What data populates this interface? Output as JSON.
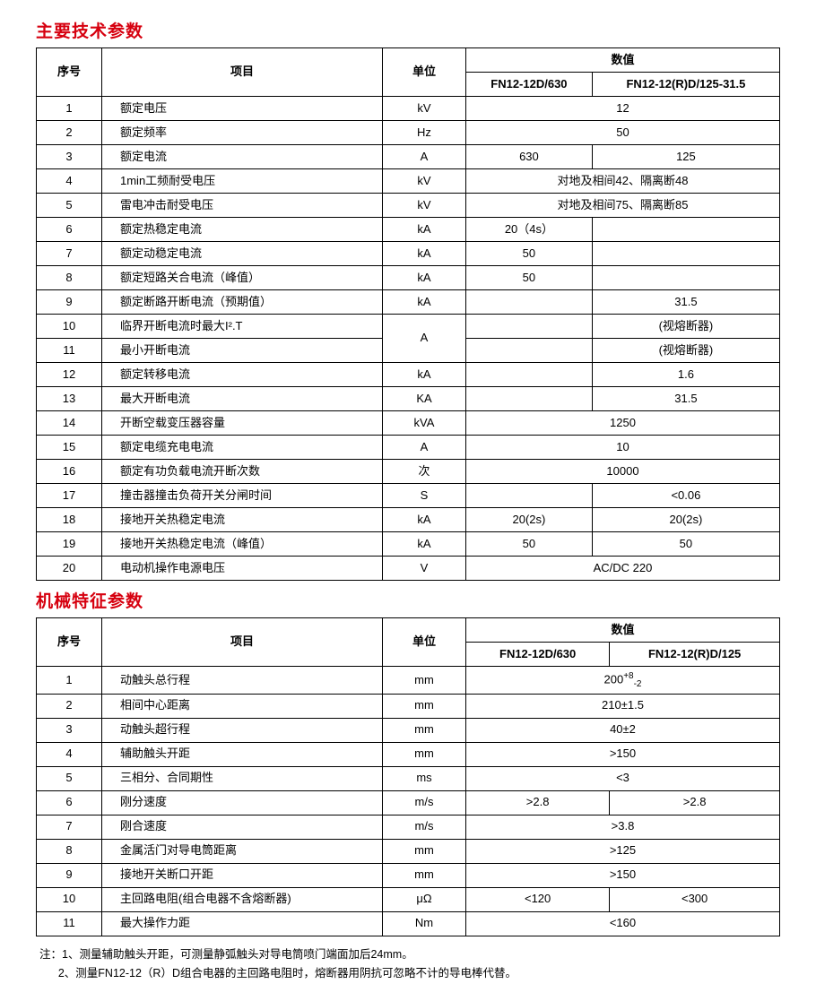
{
  "section1": {
    "title": "主要技术参数",
    "headers": {
      "seq": "序号",
      "item": "项目",
      "unit": "单位",
      "value": "数值",
      "model1": "FN12-12D/630",
      "model2": "FN12-12(R)D/125-31.5"
    },
    "rows": [
      {
        "seq": "1",
        "item": "额定电压",
        "unit": "kV",
        "v1": "12",
        "span": 2
      },
      {
        "seq": "2",
        "item": "额定频率",
        "unit": "Hz",
        "v1": "50",
        "span": 2
      },
      {
        "seq": "3",
        "item": "额定电流",
        "unit": "A",
        "v1": "630",
        "v2": "125",
        "span": 1
      },
      {
        "seq": "4",
        "item": "1min工频耐受电压",
        "unit": "kV",
        "v1": "对地及相间42、隔离断48",
        "span": 2
      },
      {
        "seq": "5",
        "item": "雷电冲击耐受电压",
        "unit": "kV",
        "v1": "对地及相间75、隔离断85",
        "span": 2
      },
      {
        "seq": "6",
        "item": "额定热稳定电流",
        "unit": "kA",
        "v1": "20（4s）",
        "v2": "",
        "span": 1
      },
      {
        "seq": "7",
        "item": "额定动稳定电流",
        "unit": "kA",
        "v1": "50",
        "v2": "",
        "span": 1
      },
      {
        "seq": "8",
        "item": "额定短路关合电流（峰值）",
        "unit": "kA",
        "v1": "50",
        "v2": "",
        "span": 1
      },
      {
        "seq": "9",
        "item": "额定断路开断电流（预期值）",
        "unit": "kA",
        "v1": "",
        "v2": "31.5",
        "span": 1
      },
      {
        "seq": "10",
        "item": "临界开断电流时最大I².T",
        "unit": "A",
        "v1": "",
        "v2": "(视熔断器)",
        "span": 1,
        "unitrowspan": 2
      },
      {
        "seq": "11",
        "item": "最小开断电流",
        "unit": "",
        "v1": "",
        "v2": "(视熔断器)",
        "span": 1,
        "skipunit": true
      },
      {
        "seq": "12",
        "item": "额定转移电流",
        "unit": "kA",
        "v1": "",
        "v2": "1.6",
        "span": 1
      },
      {
        "seq": "13",
        "item": "最大开断电流",
        "unit": "KA",
        "v1": "",
        "v2": "31.5",
        "span": 1
      },
      {
        "seq": "14",
        "item": "开断空载变压器容量",
        "unit": "kVA",
        "v1": "1250",
        "span": 2
      },
      {
        "seq": "15",
        "item": "额定电缆充电电流",
        "unit": "A",
        "v1": "10",
        "span": 2
      },
      {
        "seq": "16",
        "item": "额定有功负载电流开断次数",
        "unit": "次",
        "v1": "10000",
        "span": 2
      },
      {
        "seq": "17",
        "item": "撞击器撞击负荷开关分闸时间",
        "unit": "S",
        "v1": "",
        "v2": "<0.06",
        "span": 1
      },
      {
        "seq": "18",
        "item": "接地开关热稳定电流",
        "unit": "kA",
        "v1": "20(2s)",
        "v2": "20(2s)",
        "span": 1
      },
      {
        "seq": "19",
        "item": "接地开关热稳定电流（峰值）",
        "unit": "kA",
        "v1": "50",
        "v2": "50",
        "span": 1
      },
      {
        "seq": "20",
        "item": "电动机操作电源电压",
        "unit": "V",
        "v1": "AC/DC 220",
        "span": 2
      }
    ]
  },
  "section2": {
    "title": "机械特征参数",
    "headers": {
      "seq": "序号",
      "item": "项目",
      "unit": "单位",
      "value": "数值",
      "model1": "FN12-12D/630",
      "model2": "FN12-12(R)D/125"
    },
    "rows": [
      {
        "seq": "1",
        "item": "动触头总行程",
        "unit": "mm",
        "v1": "200",
        "span": 2,
        "tol": "+8 -2"
      },
      {
        "seq": "2",
        "item": "相间中心距离",
        "unit": "mm",
        "v1": "210±1.5",
        "span": 2
      },
      {
        "seq": "3",
        "item": "动触头超行程",
        "unit": "mm",
        "v1": "40±2",
        "span": 2
      },
      {
        "seq": "4",
        "item": "辅助触头开距",
        "unit": "mm",
        "v1": ">150",
        "span": 2
      },
      {
        "seq": "5",
        "item": "三相分、合同期性",
        "unit": "ms",
        "v1": "<3",
        "span": 2
      },
      {
        "seq": "6",
        "item": "刚分速度",
        "unit": "m/s",
        "v1": ">2.8",
        "v2": ">2.8",
        "span": 1
      },
      {
        "seq": "7",
        "item": "刚合速度",
        "unit": "m/s",
        "v1": ">3.8",
        "span": 2
      },
      {
        "seq": "8",
        "item": "金属活门对导电筒距离",
        "unit": "mm",
        "v1": ">125",
        "span": 2
      },
      {
        "seq": "9",
        "item": "接地开关断口开距",
        "unit": "mm",
        "v1": ">150",
        "span": 2
      },
      {
        "seq": "10",
        "item": "主回路电阻(组合电器不含熔断器)",
        "unit": "μΩ",
        "v1": "<120",
        "v2": "<300",
        "span": 1
      },
      {
        "seq": "11",
        "item": "最大操作力距",
        "unit": "Nm",
        "v1": "<160",
        "span": 2
      }
    ]
  },
  "notes": {
    "prefix": "注：",
    "line1": "1、测量辅助触头开距，可测量静弧触头对导电筒喷门端面加后24mm。",
    "line2": "2、测量FN12-12（R）D组合电器的主回路电阻时，熔断器用阴抗可忽略不计的导电棒代替。"
  }
}
